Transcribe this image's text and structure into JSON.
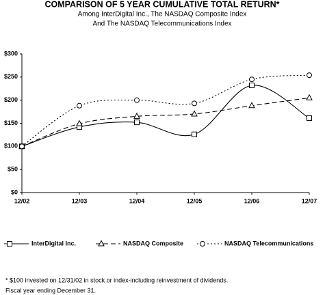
{
  "chart_data": {
    "type": "line",
    "title": "COMPARISON OF 5 YEAR CUMULATIVE TOTAL RETURN*",
    "subtitle": [
      "Among InterDigital Inc., The NASDAQ Composite Index",
      "And The NASDAQ Telecommunications Index"
    ],
    "categories": [
      "12/02",
      "12/03",
      "12/04",
      "12/05",
      "12/06",
      "12/07"
    ],
    "series": [
      {
        "name": "InterDigital Inc.",
        "color": "#000000",
        "line_style": "solid",
        "marker": "square",
        "values": [
          100,
          142,
          152,
          126,
          232,
          161
        ]
      },
      {
        "name": "NASDAQ Composite",
        "color": "#000000",
        "line_style": "dashed",
        "marker": "triangle",
        "values": [
          100,
          149,
          165,
          170,
          188,
          205
        ]
      },
      {
        "name": "NASDAQ Telecommunications",
        "color": "#000000",
        "line_style": "dotted",
        "marker": "circle",
        "values": [
          100,
          188,
          200,
          193,
          245,
          254
        ]
      }
    ],
    "ylim": [
      0,
      300
    ],
    "yticks": [
      {
        "value": 0,
        "label": "$0"
      },
      {
        "value": 50,
        "label": "$50"
      },
      {
        "value": 100,
        "label": "$100"
      },
      {
        "value": 150,
        "label": "$150"
      },
      {
        "value": 200,
        "label": "$200"
      },
      {
        "value": 250,
        "label": "$250"
      },
      {
        "value": 300,
        "label": "$300"
      }
    ],
    "grid": false,
    "legend": "bottom",
    "footnotes": [
      "* $100 invested on 12/31/02 in stock or index-including reinvestment of dividends.",
      "Fiscal year ending December 31."
    ]
  }
}
